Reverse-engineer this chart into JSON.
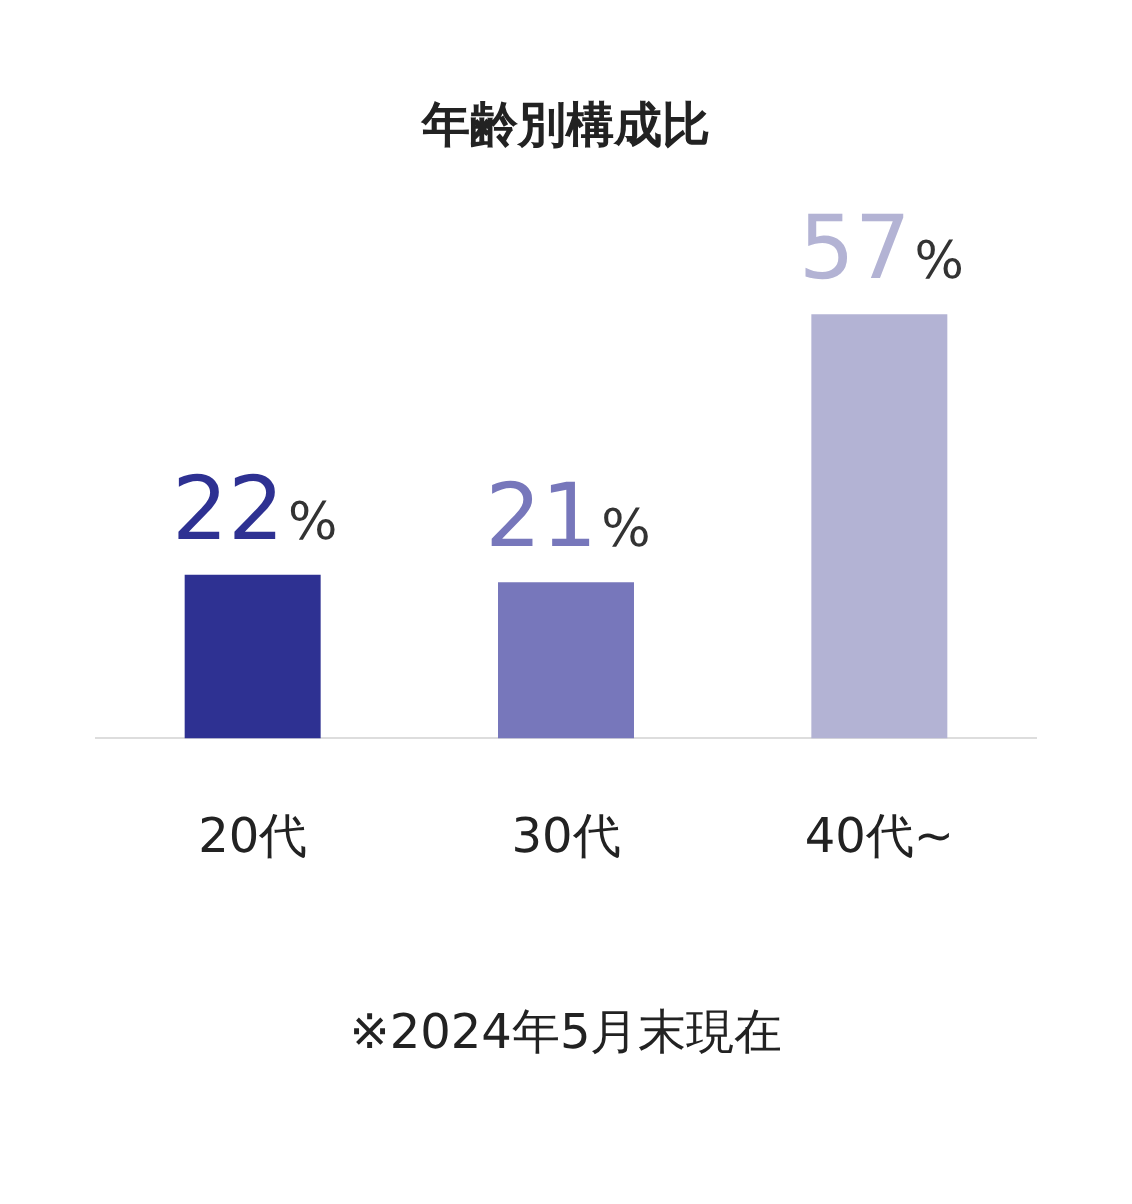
{
  "chart_data": {
    "type": "bar",
    "title": "年齢別構成比",
    "categories": [
      "20代",
      "30代",
      "40代~"
    ],
    "values": [
      22,
      21,
      57
    ],
    "colors": [
      "#2e3192",
      "#7777bb",
      "#b3b3d4"
    ],
    "value_labels": [
      "22%",
      "21%",
      "57%"
    ],
    "grid": false,
    "legend": false,
    "annotations": [
      "※2024年5月末現在"
    ]
  }
}
